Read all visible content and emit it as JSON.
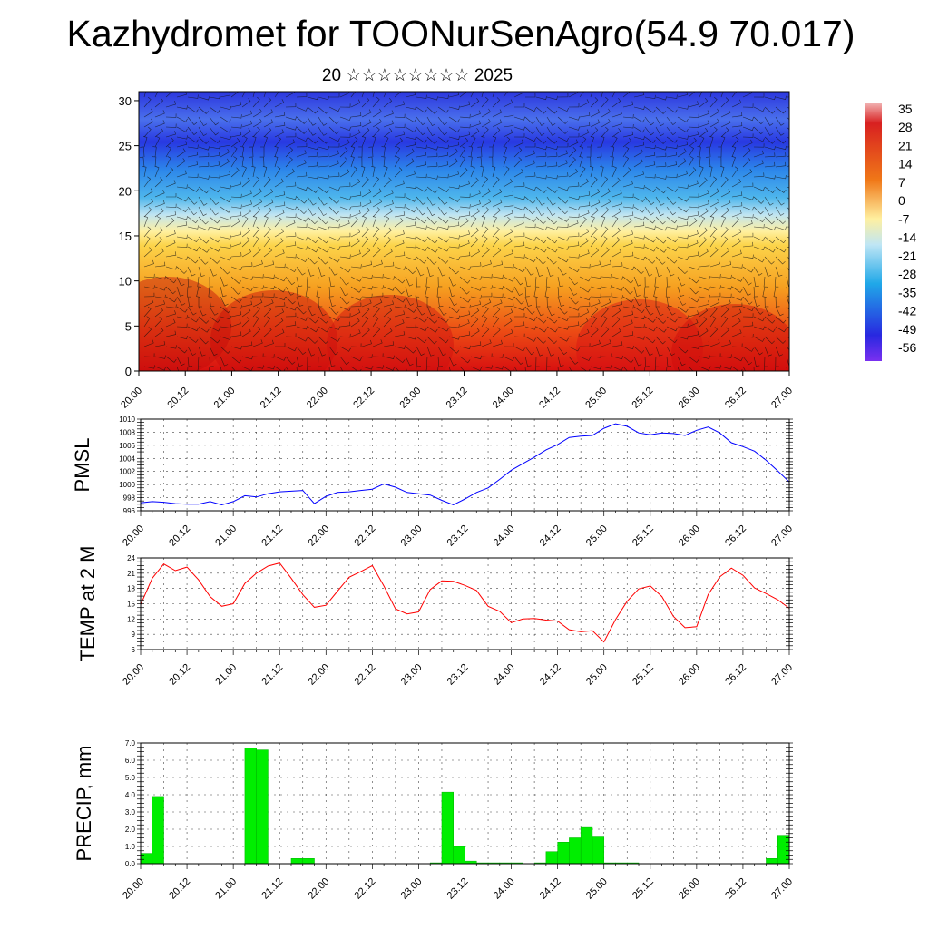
{
  "header": {
    "title": "Kazhydromet for TOONurSenAgro(54.9 70.017)",
    "subtitle": "20 ☆☆☆☆☆☆☆☆ 2025"
  },
  "chart_data": [
    {
      "type": "heatmap",
      "title": "",
      "xlabel": "",
      "ylabel": "",
      "x_tick_labels": [
        "20.00",
        "20.12",
        "21.00",
        "21.12",
        "22.00",
        "22.12",
        "23.00",
        "23.12",
        "24.00",
        "24.12",
        "25.00",
        "25.12",
        "26.00",
        "26.12",
        "27.00"
      ],
      "y_ticks": [
        0,
        5,
        10,
        15,
        20,
        25,
        30
      ],
      "ylim": [
        0,
        31
      ],
      "colorbar": {
        "labels": [
          "35",
          "28",
          "21",
          "14",
          "7",
          "0",
          "-7",
          "-14",
          "-21",
          "-28",
          "-35",
          "-42",
          "-49",
          "-56"
        ],
        "range": [
          -60,
          37
        ]
      },
      "overlay": "wind barbs",
      "colors": {
        "hot": "#d81010",
        "warm": "#f29020",
        "neutral": "#fff0a0",
        "cool": "#20a8e8",
        "cold": "#2828e0"
      }
    },
    {
      "type": "line",
      "ylabel": "PMSL",
      "ylim": [
        996,
        1010
      ],
      "y_ticks": [
        996,
        998,
        1000,
        1002,
        1004,
        1006,
        1008,
        1010
      ],
      "x_tick_labels": [
        "20.00",
        "20.12",
        "21.00",
        "21.12",
        "22.00",
        "22.12",
        "23.00",
        "23.12",
        "24.00",
        "24.12",
        "25.00",
        "25.12",
        "26.00",
        "26.12",
        "27.00"
      ],
      "series": [
        {
          "color": "#0000ff",
          "x": [
            0,
            3,
            6,
            9,
            12,
            15,
            18,
            21,
            24,
            27,
            30,
            33,
            36,
            39,
            42,
            45,
            48,
            51,
            54,
            57,
            60,
            63,
            66,
            69,
            72,
            75,
            78,
            81,
            84,
            87,
            90,
            93,
            96,
            99,
            102,
            105,
            108,
            111,
            114,
            117,
            120,
            123,
            126,
            129,
            132,
            135,
            138,
            141,
            144,
            147,
            150,
            153,
            156,
            159,
            162,
            165,
            168
          ],
          "values": [
            997.2,
            997.4,
            997.3,
            997.1,
            997.0,
            997.0,
            997.4,
            996.9,
            997.4,
            998.3,
            998.1,
            998.6,
            998.9,
            999.0,
            999.1,
            997.1,
            998.2,
            998.8,
            998.9,
            999.1,
            999.3,
            1000.1,
            999.6,
            998.8,
            998.6,
            998.4,
            997.6,
            996.9,
            997.8,
            998.8,
            999.5,
            1000.8,
            1002.2,
            1003.2,
            1004.2,
            1005.3,
            1006.1,
            1007.2,
            1007.4,
            1007.5,
            1008.6,
            1009.3,
            1008.9,
            1007.9,
            1007.6,
            1007.9,
            1007.8,
            1007.5,
            1008.3,
            1008.8,
            1007.9,
            1006.4,
            1005.8,
            1005.1,
            1003.7,
            1002.1,
            1000.4
          ]
        }
      ]
    },
    {
      "type": "line",
      "ylabel": "TEMP at 2 M",
      "ylim": [
        6,
        24
      ],
      "y_ticks": [
        6,
        9,
        12,
        15,
        18,
        21,
        24
      ],
      "x_tick_labels": [
        "20.00",
        "20.12",
        "21.00",
        "21.12",
        "22.00",
        "22.12",
        "23.00",
        "23.12",
        "24.00",
        "24.12",
        "25.00",
        "25.12",
        "26.00",
        "26.12",
        "27.00"
      ],
      "series": [
        {
          "color": "#ff0000",
          "x": [
            0,
            3,
            6,
            9,
            12,
            15,
            18,
            21,
            24,
            27,
            30,
            33,
            36,
            39,
            42,
            45,
            48,
            51,
            54,
            57,
            60,
            63,
            66,
            69,
            72,
            75,
            78,
            81,
            84,
            87,
            90,
            93,
            96,
            99,
            102,
            105,
            108,
            111,
            114,
            117,
            120,
            123,
            126,
            129,
            132,
            135,
            138,
            141,
            144,
            147,
            150,
            153,
            156,
            159,
            162,
            165,
            168
          ],
          "values": [
            14.8,
            20.0,
            22.8,
            21.5,
            22.2,
            19.7,
            16.4,
            14.5,
            15.0,
            19.0,
            21.0,
            22.4,
            23.0,
            20.0,
            16.8,
            14.3,
            14.7,
            17.5,
            20.2,
            21.3,
            22.5,
            18.5,
            14.0,
            13.0,
            13.4,
            17.8,
            19.5,
            19.4,
            18.6,
            17.6,
            14.5,
            13.5,
            11.3,
            12.0,
            12.1,
            11.8,
            11.6,
            9.9,
            9.5,
            9.7,
            7.5,
            11.9,
            15.5,
            17.9,
            18.5,
            16.4,
            12.5,
            10.3,
            10.5,
            16.8,
            20.3,
            22.0,
            20.6,
            18.1,
            17.0,
            15.8,
            14.1
          ]
        }
      ]
    },
    {
      "type": "bar",
      "ylabel": "PRECIP, mm",
      "ylim": [
        0,
        7
      ],
      "y_tick_labels": [
        "0.0",
        "1.0",
        "2.0",
        "3.0",
        "4.0",
        "5.0",
        "6.0",
        "7.0"
      ],
      "x_tick_labels": [
        "20.00",
        "20.12",
        "21.00",
        "21.12",
        "22.00",
        "22.12",
        "23.00",
        "23.12",
        "24.00",
        "24.12",
        "25.00",
        "25.12",
        "26.00",
        "26.12",
        "27.00"
      ],
      "bar_color": "#00ee00",
      "x_start": [
        3,
        6,
        30,
        33,
        42,
        45,
        78,
        81,
        84,
        87,
        90,
        93,
        96,
        99,
        105,
        108,
        111,
        114,
        117,
        120,
        123,
        126,
        129,
        165,
        168
      ],
      "values": [
        0.6,
        3.9,
        6.7,
        6.6,
        0.3,
        0.3,
        0.05,
        4.15,
        1.0,
        0.15,
        0.05,
        0.05,
        0.05,
        0.05,
        0.05,
        0.7,
        1.25,
        1.5,
        2.1,
        1.55,
        0.05,
        0.05,
        0.05,
        0.3,
        1.65
      ]
    }
  ]
}
